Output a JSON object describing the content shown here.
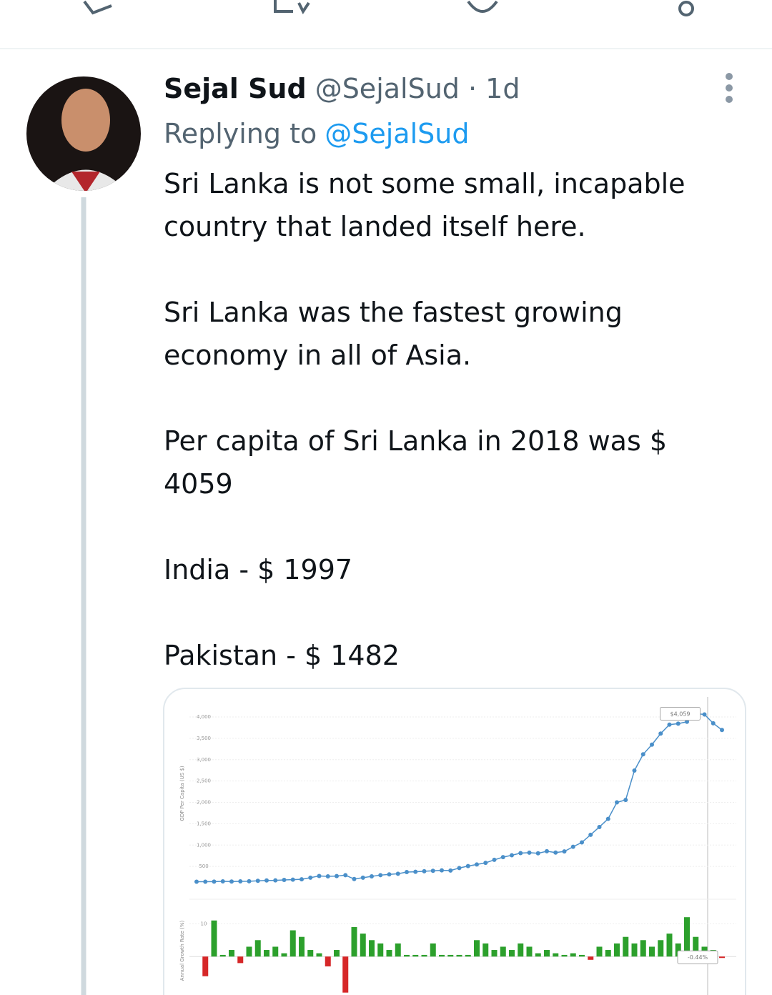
{
  "tweet": {
    "name": "Sejal Sud",
    "handle_time": "@SejalSud · 1d",
    "reply_prefix": "Replying to",
    "reply_to": "@SejalSud",
    "lines": [
      [
        "Sri Lanka is not some small, incapable",
        "country that landed itself here."
      ],
      [
        "Sri Lanka was the fastest growing",
        "economy in all of Asia."
      ],
      [
        "Per capita of Sri Lanka in 2018 was $",
        "4059"
      ],
      [
        "India - $ 1997"
      ],
      [
        "Pakistan - $ 1482"
      ]
    ]
  },
  "chart_data": [
    {
      "type": "line",
      "y_label": "GDP Per Capita (US $)",
      "color": "#4a8fc9",
      "ylim": [
        0,
        4000
      ],
      "yticks": [
        {
          "value": 500,
          "label": "500"
        },
        {
          "value": 1000,
          "label": "1,000"
        },
        {
          "value": 1500,
          "label": "1,500"
        },
        {
          "value": 2000,
          "label": "2,000"
        },
        {
          "value": 2500,
          "label": "2,500"
        },
        {
          "value": 3000,
          "label": "3,000"
        },
        {
          "value": 3500,
          "label": "3,500"
        },
        {
          "value": 4000,
          "label": "4,000"
        }
      ],
      "values": [
        143,
        143,
        145,
        150,
        146,
        150,
        153,
        163,
        171,
        173,
        184,
        190,
        198,
        237,
        277,
        268,
        274,
        294,
        205,
        236,
        268,
        296,
        314,
        329,
        368,
        374,
        387,
        397,
        407,
        404,
        463,
        509,
        546,
        584,
        654,
        718,
        761,
        811,
        822,
        807,
        855,
        825,
        851,
        960,
        1062,
        1241,
        1423,
        1614,
        2000,
        2057,
        2744,
        3125,
        3351,
        3610,
        3821,
        3843,
        3887,
        4077,
        4059,
        3852,
        3695
      ],
      "value_labels": [
        null,
        null,
        null,
        null,
        null,
        null,
        null,
        null,
        null,
        null,
        null,
        null,
        null,
        null,
        null,
        null,
        null,
        null,
        null,
        null,
        null,
        null,
        null,
        null,
        null,
        null,
        null,
        null,
        null,
        null,
        null,
        null,
        null,
        null,
        null,
        null,
        null,
        null,
        null,
        null,
        null,
        null,
        null,
        null,
        null,
        null,
        null,
        null,
        null,
        null,
        null,
        null,
        null,
        null,
        null,
        null,
        null,
        null,
        "$4,059",
        null,
        null
      ]
    },
    {
      "type": "bar",
      "y_label": "Annual Growth Rate (%)",
      "pos_color": "#2ca02c",
      "neg_color": "#d62728",
      "ylim": [
        -15,
        14
      ],
      "yticks": [
        10
      ],
      "values": [
        null,
        -6,
        11,
        0.5,
        2,
        -2,
        3,
        5,
        2,
        3,
        1,
        8,
        6,
        2,
        1,
        -3,
        2,
        -11,
        9,
        7,
        5,
        4,
        2,
        4,
        0.5,
        0.5,
        0.5,
        4,
        0.5,
        0.5,
        0.5,
        0.5,
        5,
        4,
        2,
        3,
        2,
        4,
        3,
        1,
        2,
        1,
        0.5,
        1,
        0.5,
        -1,
        3,
        2,
        4,
        6,
        4,
        5,
        3,
        5,
        7,
        4,
        12,
        6,
        3,
        2,
        -0.44
      ],
      "value_labels": [
        null,
        null,
        null,
        null,
        null,
        null,
        null,
        null,
        null,
        null,
        null,
        null,
        null,
        null,
        null,
        null,
        null,
        null,
        null,
        null,
        null,
        null,
        null,
        null,
        null,
        null,
        null,
        null,
        null,
        null,
        null,
        null,
        null,
        null,
        null,
        null,
        null,
        null,
        null,
        null,
        null,
        null,
        null,
        null,
        null,
        null,
        null,
        null,
        null,
        null,
        null,
        null,
        null,
        null,
        null,
        null,
        null,
        null,
        null,
        null,
        "-0.44%"
      ]
    }
  ]
}
